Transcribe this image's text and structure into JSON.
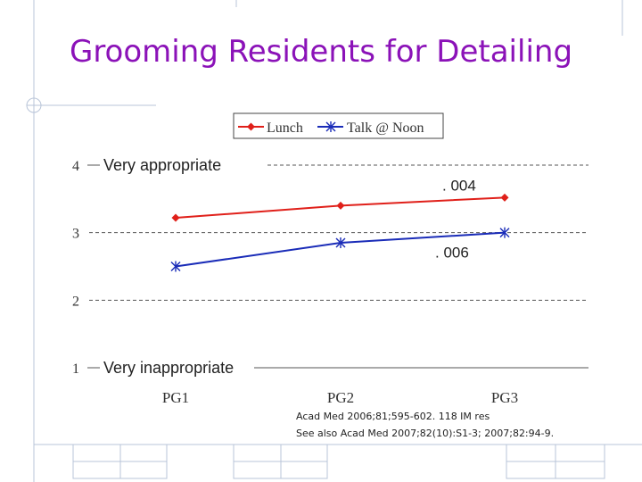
{
  "slide": {
    "title": "Grooming Residents for Detailing",
    "citation_line1": "Acad Med 2006;81;595-602. 118 IM res",
    "citation_line2": "See also Acad Med 2007;82(10):S1-3; 2007;82:94-9."
  },
  "colors": {
    "title": "#8b12b8",
    "lunch": "#e0201a",
    "talk": "#1a2cb8",
    "decor": "#b8c4d8"
  },
  "chart_data": {
    "type": "line",
    "categories": [
      "PG1",
      "PG2",
      "PG3"
    ],
    "ylim": [
      1,
      4
    ],
    "yticks": [
      "1",
      "2",
      "3",
      "4"
    ],
    "ytick_values": [
      1,
      2,
      3,
      4
    ],
    "y_anchor_labels": {
      "top": "Very appropriate",
      "bottom": "Very inappropriate"
    },
    "grid": true,
    "legend_position": "top",
    "series": [
      {
        "name": "Lunch",
        "marker": "diamond",
        "color": "#e0201a",
        "values": [
          3.22,
          3.4,
          3.52
        ]
      },
      {
        "name": "Talk @ Noon",
        "marker": "star",
        "color": "#1a2cb8",
        "values": [
          2.5,
          2.85,
          3.0
        ]
      }
    ],
    "annotations": [
      {
        "text": ". 004",
        "series": "Lunch"
      },
      {
        "text": ". 006",
        "series": "Talk @ Noon"
      }
    ]
  }
}
